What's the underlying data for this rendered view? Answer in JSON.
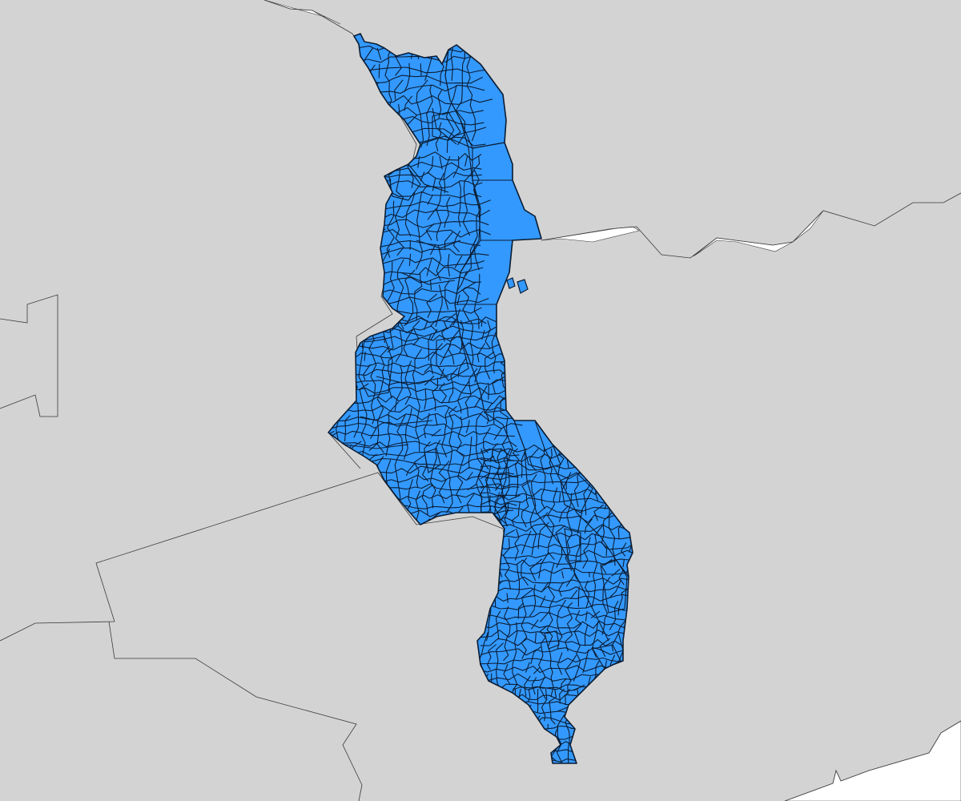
{
  "map": {
    "colors": {
      "background_land": "#d3d3d3",
      "water": "#ffffff",
      "region_fill": "#3399ff",
      "region_outline": "#0b1d33",
      "country_border": "#3a3a3a"
    },
    "layers": [
      {
        "name": "neighbouring-countries",
        "fill": "#d3d3d3"
      },
      {
        "name": "administrative-regions",
        "fill": "#3399ff"
      }
    ]
  }
}
